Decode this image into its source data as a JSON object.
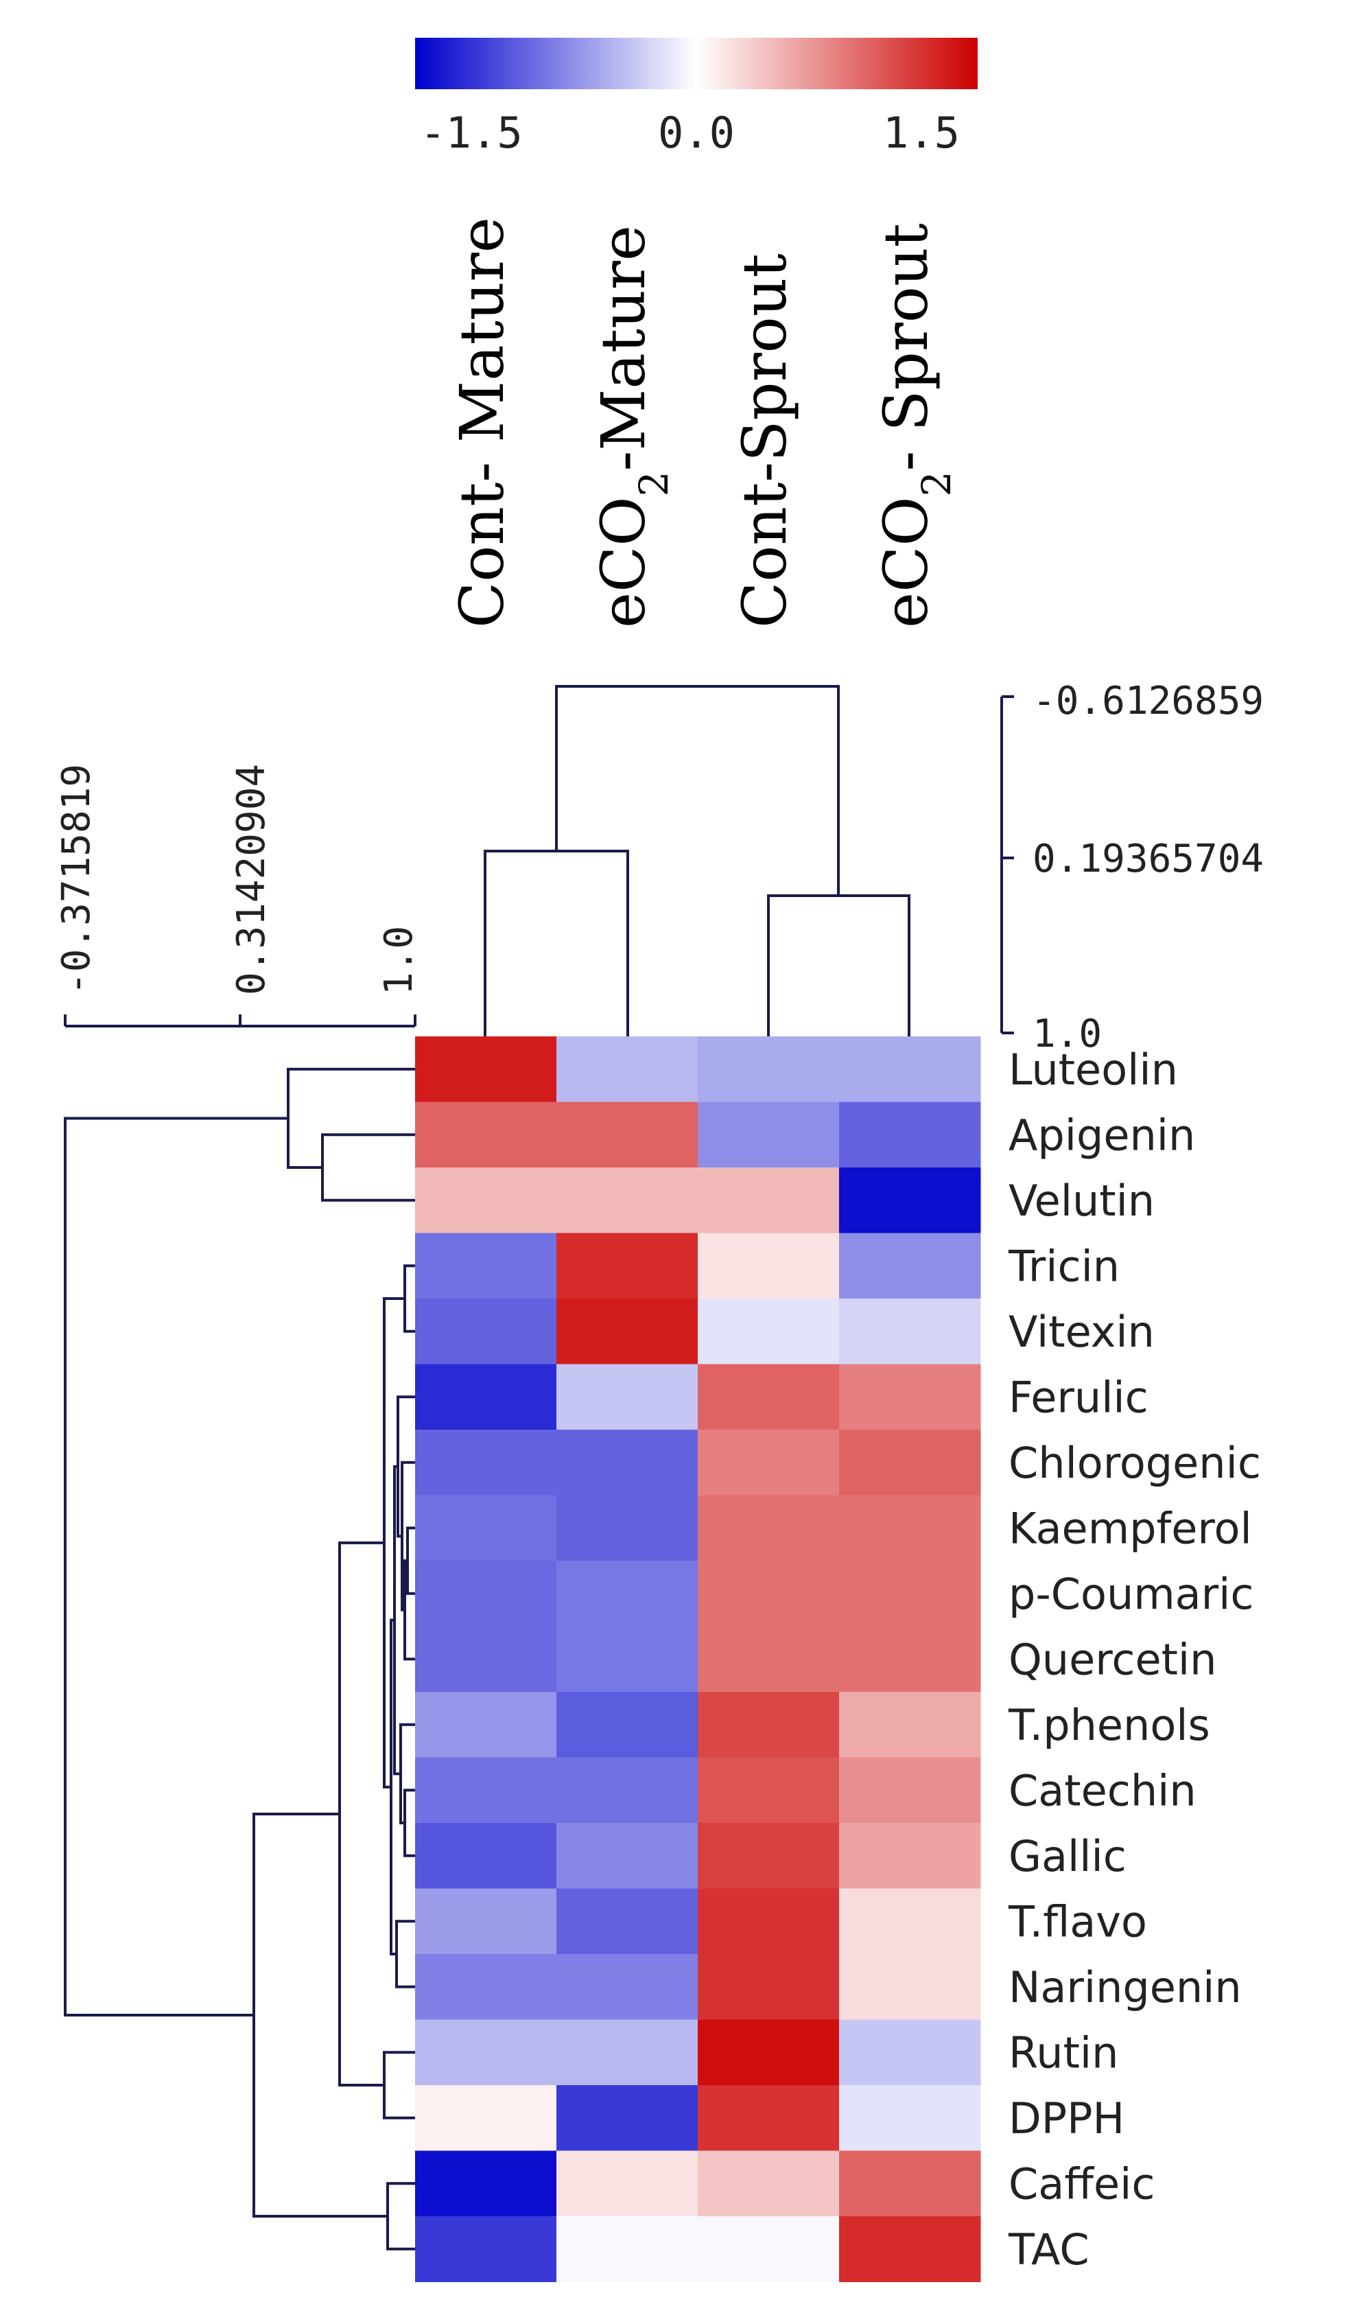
{
  "chart_data": {
    "type": "heatmap",
    "title": "",
    "columns": [
      "Cont- Mature",
      "eCO2-Mature",
      "Cont-Sprout",
      "eCO2- Sprout"
    ],
    "column_labels": [
      {
        "pre": "Cont- Mature",
        "sub": "",
        "post": ""
      },
      {
        "pre": "eCO",
        "sub": "2",
        "post": "-Mature"
      },
      {
        "pre": "Cont-Sprout",
        "sub": "",
        "post": ""
      },
      {
        "pre": "eCO",
        "sub": "2",
        "post": "- Sprout"
      }
    ],
    "rows": [
      "Luteolin",
      "Apigenin",
      "Velutin",
      "Tricin",
      "Vitexin",
      "Ferulic",
      "Chlorogenic",
      "Kaempferol",
      "p-Coumaric",
      "Quercetin",
      "T.phenols",
      "Catechin",
      "Gallic",
      "T.flavo",
      "Naringenin",
      "Rutin",
      "DPPH",
      "Caffeic",
      "TAC"
    ],
    "values": [
      [
        1.6,
        -0.5,
        -0.6,
        -0.6
      ],
      [
        1.1,
        1.1,
        -0.8,
        -1.1
      ],
      [
        0.5,
        0.5,
        0.5,
        -1.7
      ],
      [
        -1.0,
        1.5,
        0.2,
        -0.8
      ],
      [
        -1.1,
        1.6,
        -0.2,
        -0.3
      ],
      [
        -1.5,
        -0.4,
        1.1,
        0.9
      ],
      [
        -1.1,
        -1.1,
        0.9,
        1.1
      ],
      [
        -1.0,
        -1.1,
        1.0,
        1.0
      ],
      [
        -1.05,
        -0.95,
        1.0,
        1.0
      ],
      [
        -1.05,
        -0.95,
        1.0,
        1.0
      ],
      [
        -0.75,
        -1.15,
        1.3,
        0.6
      ],
      [
        -1.0,
        -1.0,
        1.2,
        0.8
      ],
      [
        -1.2,
        -0.85,
        1.35,
        0.65
      ],
      [
        -0.7,
        -1.1,
        1.45,
        0.25
      ],
      [
        -0.9,
        -0.9,
        1.45,
        0.25
      ],
      [
        -0.5,
        -0.5,
        1.7,
        -0.4
      ],
      [
        0.1,
        -1.4,
        1.45,
        -0.2
      ],
      [
        -1.7,
        0.2,
        0.4,
        1.1
      ],
      [
        -1.4,
        -0.05,
        -0.05,
        1.5
      ]
    ],
    "color_scale": {
      "min": -1.8,
      "max": 1.8,
      "low_color": "#0000cc",
      "mid_color": "#ffffff",
      "high_color": "#cc0000",
      "tick_labels": [
        "-1.5",
        "0.0",
        "1.5"
      ],
      "tick_values": [
        -1.5,
        0.0,
        1.5
      ]
    },
    "column_dendrogram": {
      "scale_ticks": [
        "-0.6126859",
        "0.19365704",
        "1.0"
      ],
      "merges": [
        [
          "Cont- Mature",
          "eCO2-Mature"
        ],
        [
          "Cont-Sprout",
          "eCO2- Sprout"
        ],
        [
          "group1",
          "group2"
        ]
      ]
    },
    "row_dendrogram": {
      "scale_ticks": [
        "-0.3715819",
        "0.31420904",
        "1.0"
      ]
    }
  }
}
